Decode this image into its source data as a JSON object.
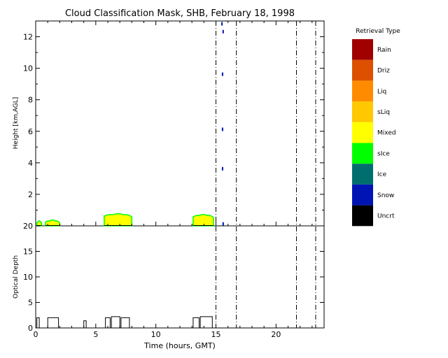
{
  "chart_data": [
    {
      "type": "heatmap",
      "title": "Cloud Classification Mask, SHB, February 18, 1998",
      "xlabel": "",
      "ylabel": "Height [km,AGL]",
      "xlim": [
        0,
        24
      ],
      "ylim": [
        0,
        13
      ],
      "x_ticks": [
        "0",
        "5",
        "10",
        "15",
        "20"
      ],
      "y_ticks": [
        "2",
        "4",
        "6",
        "8",
        "10",
        "12"
      ],
      "vertical_dashdot_lines_hours": [
        15.0,
        16.7,
        21.7,
        23.3
      ],
      "cloud_regions": [
        {
          "x_start": 0.1,
          "x_end": 0.5,
          "top_km": 0.3,
          "class": "Mixed"
        },
        {
          "x_start": 0.8,
          "x_end": 2.0,
          "top_km": 0.35,
          "class": "Mixed"
        },
        {
          "x_start": 5.7,
          "x_end": 8.0,
          "top_km": 0.75,
          "class": "Mixed"
        },
        {
          "x_start": 13.1,
          "x_end": 14.8,
          "top_km": 0.7,
          "class": "Mixed"
        }
      ],
      "snow_points": [
        {
          "x": 15.5,
          "y_km": 12.8
        },
        {
          "x": 15.6,
          "y_km": 12.3
        },
        {
          "x": 15.55,
          "y_km": 9.6
        },
        {
          "x": 15.55,
          "y_km": 6.1
        },
        {
          "x": 15.55,
          "y_km": 3.6
        },
        {
          "x": 15.6,
          "y_km": 0.1
        }
      ]
    },
    {
      "type": "line",
      "title": "",
      "xlabel": "Time (hours, GMT)",
      "ylabel": "Optical Depth",
      "xlim": [
        0,
        24
      ],
      "ylim": [
        0,
        20
      ],
      "x_ticks": [
        "0",
        "5",
        "10",
        "15",
        "20"
      ],
      "y_ticks": [
        "0",
        "5",
        "10",
        "15",
        "20"
      ],
      "series": [
        {
          "values": [
            [
              0.0,
              0
            ],
            [
              0.1,
              0
            ],
            [
              0.1,
              2
            ],
            [
              0.3,
              2
            ],
            [
              0.3,
              0
            ],
            [
              1.0,
              0
            ],
            [
              1.0,
              2
            ],
            [
              1.9,
              2
            ],
            [
              1.9,
              0
            ],
            [
              4.0,
              0
            ],
            [
              4.0,
              1.4
            ],
            [
              4.2,
              1.4
            ],
            [
              4.2,
              0
            ],
            [
              5.8,
              0
            ],
            [
              5.8,
              2
            ],
            [
              6.2,
              2
            ],
            [
              6.2,
              0
            ],
            [
              6.3,
              0
            ],
            [
              6.3,
              2.2
            ],
            [
              7.0,
              2.2
            ],
            [
              7.0,
              0
            ],
            [
              7.1,
              0
            ],
            [
              7.1,
              2
            ],
            [
              7.8,
              2
            ],
            [
              7.8,
              0
            ],
            [
              13.1,
              0
            ],
            [
              13.1,
              2
            ],
            [
              13.6,
              2
            ],
            [
              13.6,
              0
            ],
            [
              13.7,
              0
            ],
            [
              13.7,
              2.2
            ],
            [
              14.7,
              2.2
            ],
            [
              14.7,
              0
            ],
            [
              24.0,
              0
            ]
          ]
        }
      ]
    }
  ],
  "legend": {
    "title": "Retrieval Type",
    "items": [
      {
        "label": "Rain",
        "color": "#a00000"
      },
      {
        "label": "Driz",
        "color": "#dc5000"
      },
      {
        "label": "Liq",
        "color": "#ff8c00"
      },
      {
        "label": "sLiq",
        "color": "#ffc800"
      },
      {
        "label": "Mixed",
        "color": "#ffff00"
      },
      {
        "label": "sIce",
        "color": "#00ff00"
      },
      {
        "label": "Ice",
        "color": "#006e6e"
      },
      {
        "label": "Snow",
        "color": "#0014b4"
      },
      {
        "label": "Uncrt",
        "color": "#000000"
      }
    ]
  }
}
